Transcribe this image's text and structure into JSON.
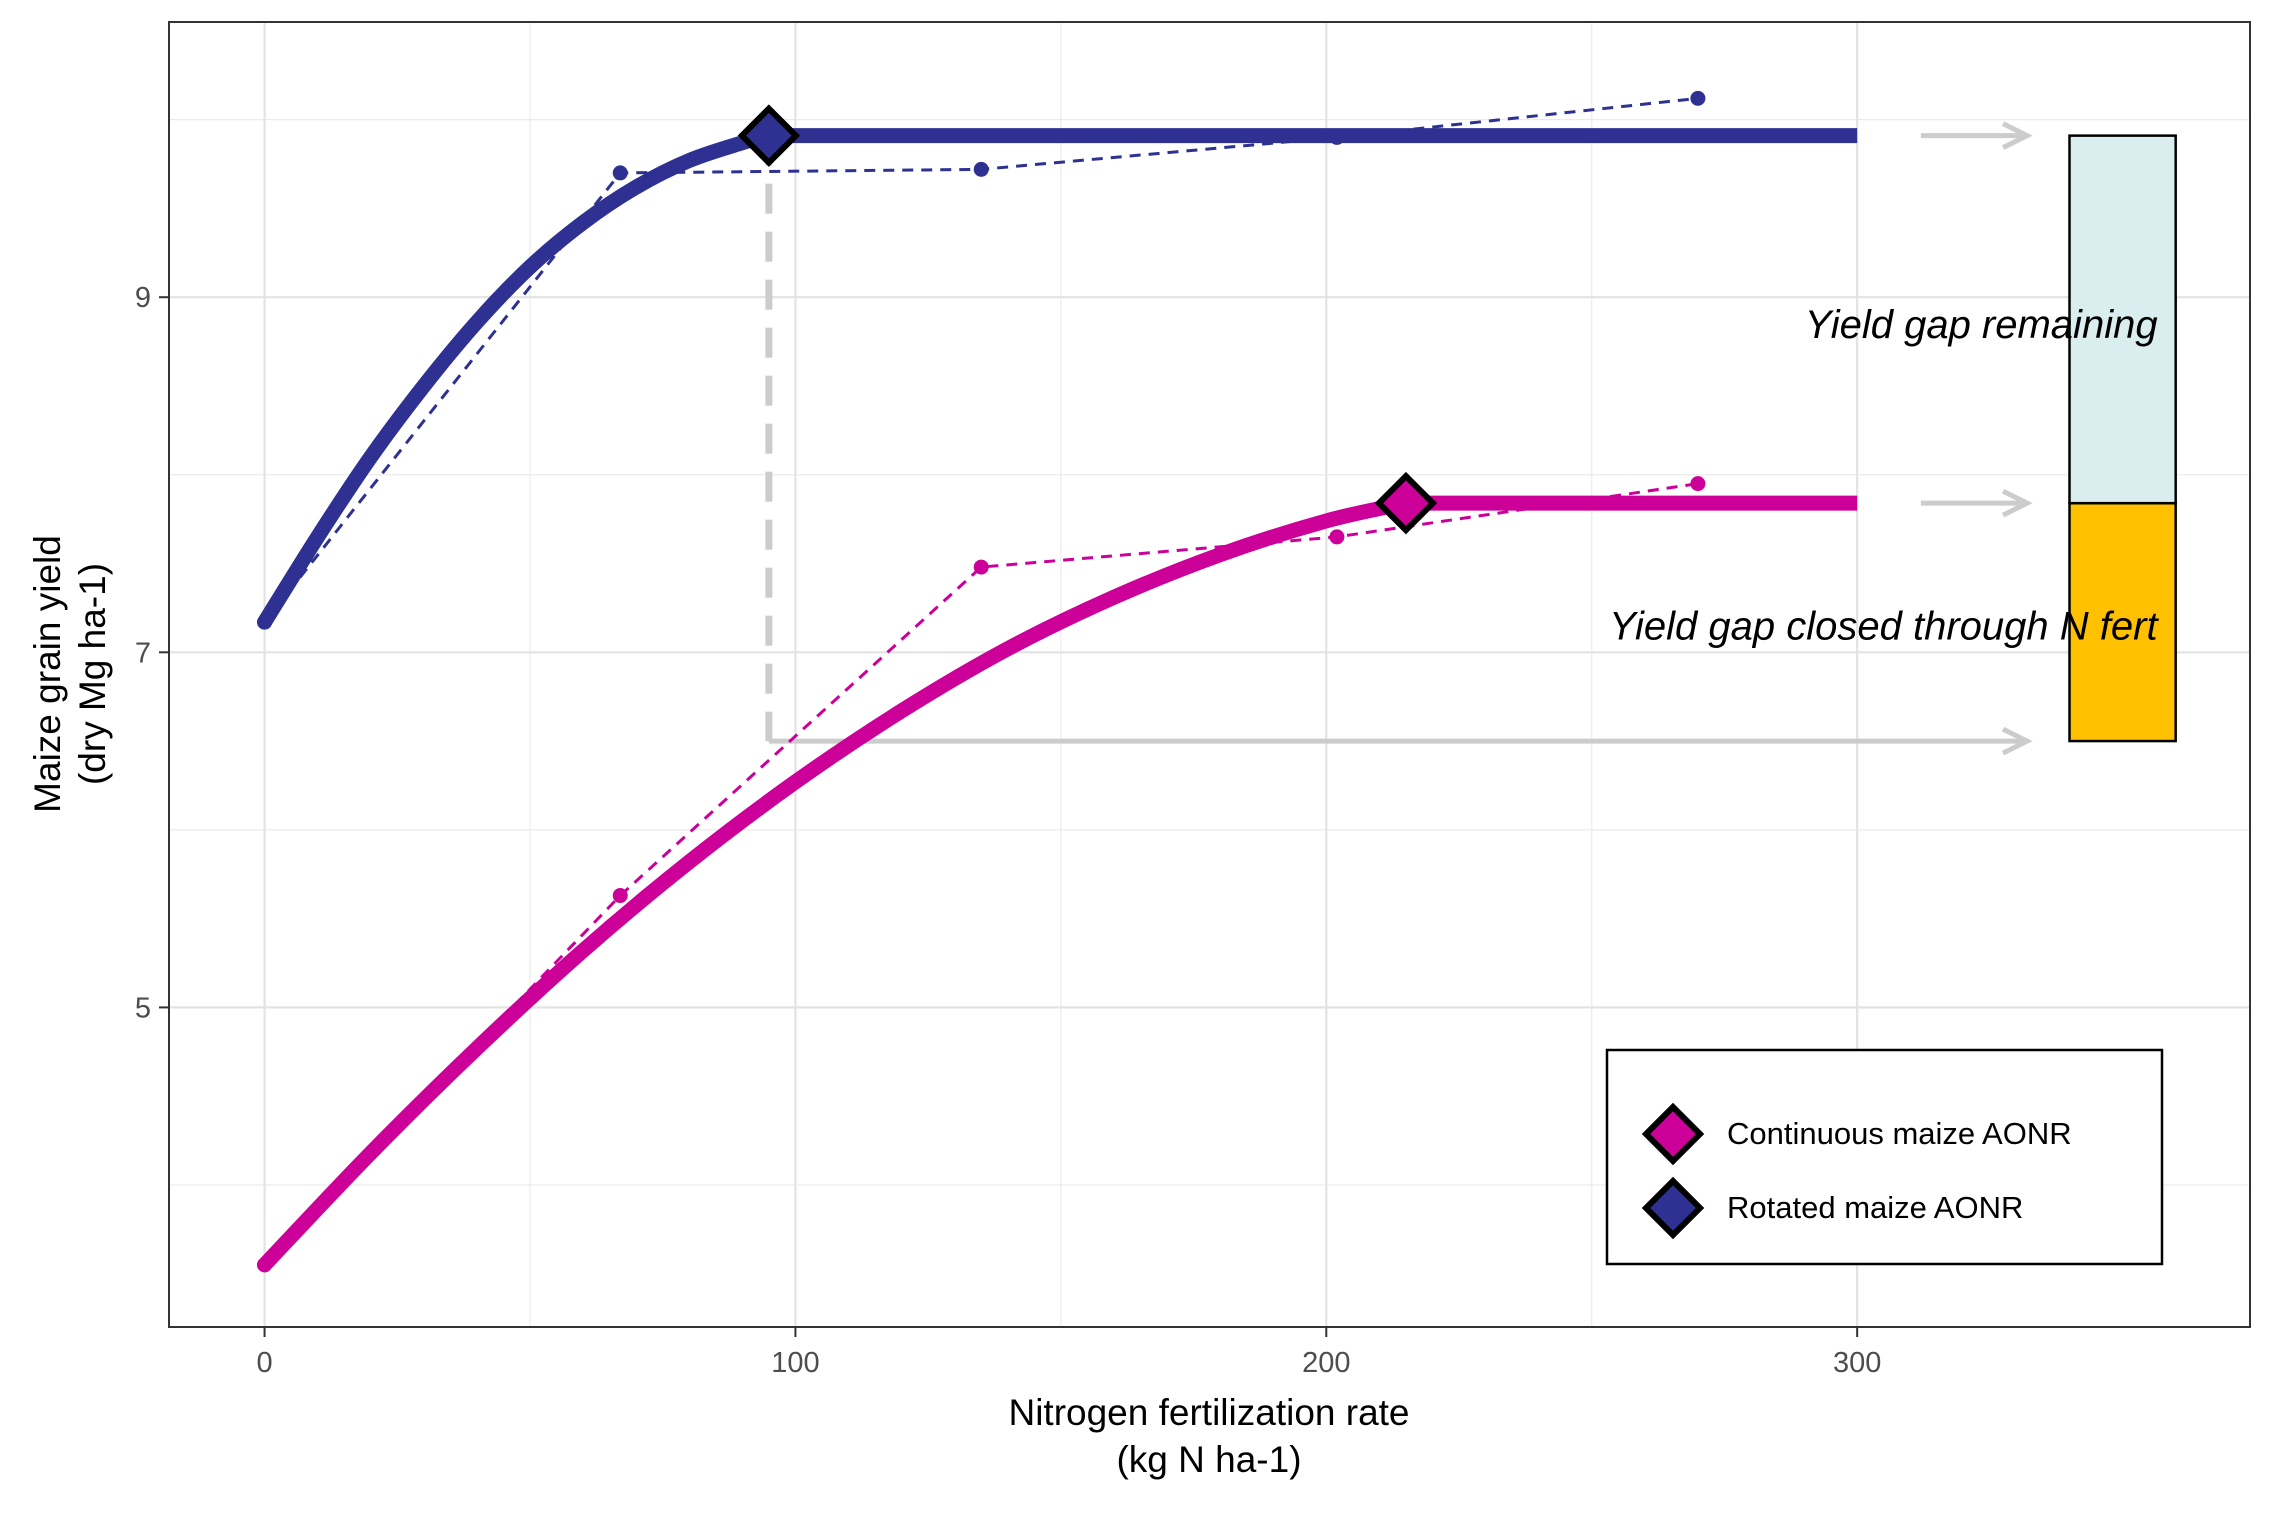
{
  "chart_data": {
    "type": "line",
    "xlabel": [
      "Nitrogen fertilization rate",
      "(kg N ha-1)"
    ],
    "ylabel": [
      "Maize grain yield",
      "(dry Mg ha-1)"
    ],
    "xlim": [
      -18,
      374
    ],
    "ylim": [
      3.2,
      10.55
    ],
    "x_ticks": [
      0,
      100,
      200,
      300
    ],
    "y_ticks": [
      5,
      7,
      9
    ],
    "x_tick_labels": [
      "0",
      "100",
      "200",
      "300"
    ],
    "y_tick_labels": [
      "5",
      "7",
      "9"
    ],
    "x_minor_grid": [
      50,
      150,
      250
    ],
    "y_minor_grid": [
      4,
      6,
      8,
      10
    ],
    "grid": true,
    "legend_position": "bottom-right",
    "series": [
      {
        "name": "Rotated maize",
        "color": "#2e3192",
        "fit_curve": {
          "x": [
            0,
            10,
            20,
            30,
            40,
            50,
            60,
            70,
            80,
            90,
            95,
            300
          ],
          "y": [
            7.17,
            7.65,
            8.1,
            8.5,
            8.86,
            9.17,
            9.42,
            9.62,
            9.77,
            9.87,
            9.91,
            9.91
          ]
        },
        "observed": {
          "x": [
            0,
            67,
            135,
            202,
            270
          ],
          "y": [
            7.17,
            9.7,
            9.72,
            9.9,
            10.12
          ]
        },
        "aonr": {
          "x": 95,
          "y": 9.91
        }
      },
      {
        "name": "Continuous maize",
        "color": "#cc0099",
        "fit_curve": {
          "x": [
            0,
            20,
            40,
            60,
            80,
            100,
            120,
            140,
            160,
            180,
            200,
            215,
            300
          ],
          "y": [
            3.55,
            4.18,
            4.77,
            5.32,
            5.82,
            6.27,
            6.67,
            7.02,
            7.31,
            7.55,
            7.74,
            7.84,
            7.84
          ]
        },
        "observed": {
          "x": [
            0,
            67,
            135,
            202,
            270
          ],
          "y": [
            3.55,
            5.63,
            7.48,
            7.65,
            7.95
          ]
        },
        "aonr": {
          "x": 215,
          "y": 7.84
        }
      }
    ],
    "reference_line": {
      "x": 95,
      "y_from": 9.91,
      "y_to": 6.5,
      "color": "#cccccc"
    },
    "arrows": [
      {
        "y": 9.91,
        "x_from": 312,
        "x_to": 332
      },
      {
        "y": 7.84,
        "x_from": 312,
        "x_to": 332
      },
      {
        "y": 6.5,
        "x_from": 95,
        "x_to": 332
      }
    ],
    "stacked_bar": {
      "x_center": 350,
      "half_width": 10,
      "segments": [
        {
          "label": "Yield gap closed through N fert",
          "from": 6.5,
          "to": 7.84,
          "color": "#ffc000"
        },
        {
          "label": "Yield gap remaining",
          "from": 7.84,
          "to": 9.91,
          "color": "#daedef"
        }
      ]
    },
    "annotations": [
      {
        "text": "Yield gap remaining",
        "x": 350,
        "y": 8.85
      },
      {
        "text": "Yield gap closed through N fert",
        "x": 350,
        "y": 7.15
      }
    ],
    "legend": [
      {
        "label": "Continuous maize AONR",
        "color": "#cc0099"
      },
      {
        "label": "Rotated maize AONR",
        "color": "#2e3192"
      }
    ]
  }
}
